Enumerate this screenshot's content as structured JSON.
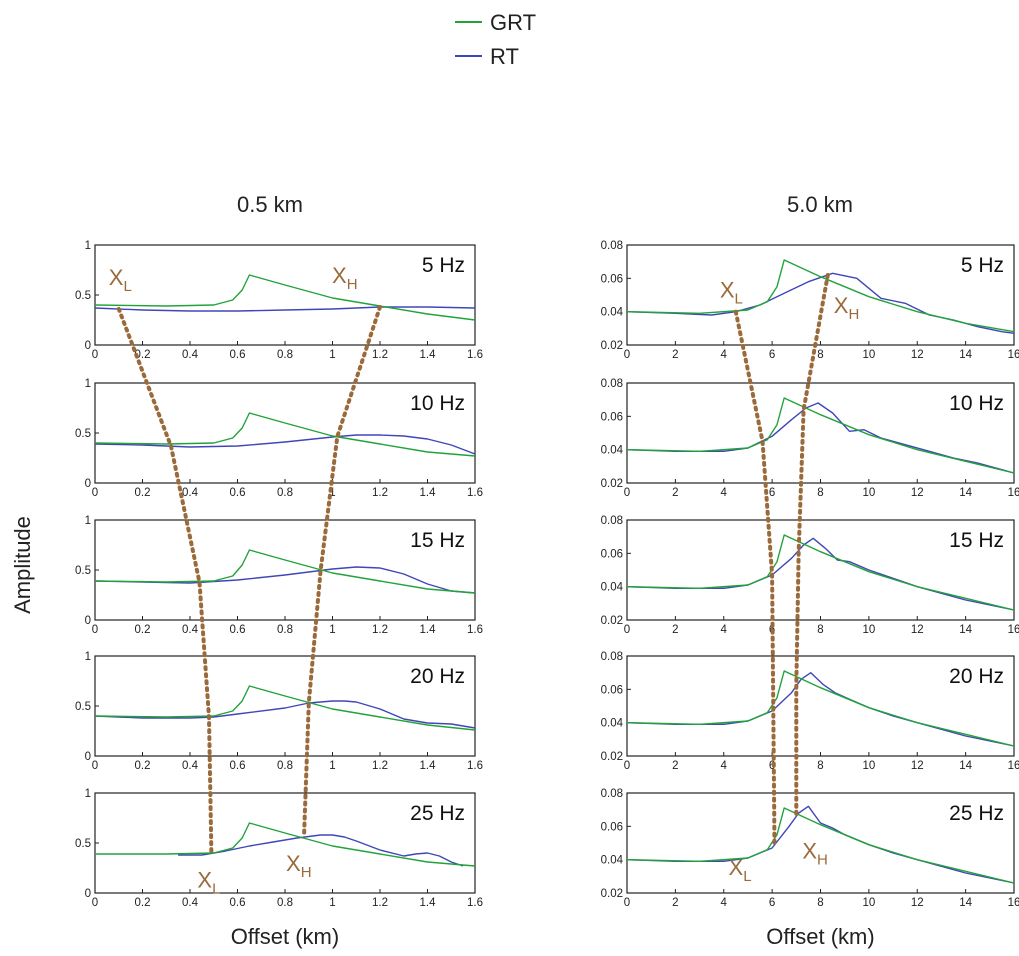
{
  "legend": {
    "placement": "top-center",
    "entries": [
      {
        "name": "GRT",
        "color": "#22a33a"
      },
      {
        "name": "RT",
        "color": "#4046b8"
      }
    ]
  },
  "ylabel": "Amplitude",
  "marker_color": "#9a6a3a",
  "marker_labels": {
    "low": "X",
    "low_sub": "L",
    "high": "X",
    "high_sub": "H"
  },
  "columns": [
    {
      "title": "0.5 km",
      "xlabel": "Offset (km)",
      "xlim": [
        0,
        1.6
      ],
      "xticks": [
        "0",
        "0.2",
        "0.4",
        "0.6",
        "0.8",
        "1",
        "1.2",
        "1.4",
        "1.6"
      ],
      "ylim": [
        0,
        1
      ],
      "yticks": [
        "0",
        "0.5",
        "1"
      ],
      "marker_label_panels": {
        "top": 0,
        "bottom": 4
      },
      "panels": [
        {
          "label": "5 Hz",
          "x_low": 0.1,
          "x_high": 1.2
        },
        {
          "label": "10 Hz",
          "x_low": 0.32,
          "x_high": 1.02
        },
        {
          "label": "15 Hz",
          "x_low": 0.44,
          "x_high": 0.95
        },
        {
          "label": "20 Hz",
          "x_low": 0.48,
          "x_high": 0.9
        },
        {
          "label": "25 Hz",
          "x_low": 0.49,
          "x_high": 0.88
        }
      ]
    },
    {
      "title": "5.0 km",
      "xlabel": "Offset (km)",
      "xlim": [
        0,
        16
      ],
      "xticks": [
        "0",
        "2",
        "4",
        "6",
        "8",
        "10",
        "12",
        "14",
        "16"
      ],
      "ylim": [
        0.02,
        0.08
      ],
      "yticks": [
        "0.02",
        "0.04",
        "0.06",
        "0.08"
      ],
      "marker_label_panels": {
        "top": 0,
        "bottom": 4
      },
      "panels": [
        {
          "label": "5 Hz",
          "x_low": 4.5,
          "x_high": 8.3
        },
        {
          "label": "10 Hz",
          "x_low": 5.6,
          "x_high": 7.3
        },
        {
          "label": "15 Hz",
          "x_low": 6.0,
          "x_high": 7.1
        },
        {
          "label": "20 Hz",
          "x_low": 6.05,
          "x_high": 7.0
        },
        {
          "label": "25 Hz",
          "x_low": 6.1,
          "x_high": 7.0
        }
      ]
    }
  ],
  "chart_data": [
    {
      "type": "line",
      "title": "0.5 km",
      "xlabel": "Offset (km)",
      "ylabel": "Amplitude",
      "xlim": [
        0,
        1.6
      ],
      "ylim": [
        0,
        1
      ],
      "panels": [
        {
          "label": "5 Hz",
          "series": [
            {
              "name": "GRT",
              "x": [
                0,
                0.3,
                0.5,
                0.58,
                0.62,
                0.65,
                0.8,
                1.0,
                1.2,
                1.4,
                1.6
              ],
              "y": [
                0.4,
                0.39,
                0.4,
                0.45,
                0.55,
                0.7,
                0.6,
                0.47,
                0.39,
                0.31,
                0.25
              ]
            },
            {
              "name": "RT",
              "x": [
                0,
                0.2,
                0.4,
                0.6,
                0.8,
                1.0,
                1.2,
                1.4,
                1.6
              ],
              "y": [
                0.37,
                0.35,
                0.34,
                0.34,
                0.35,
                0.36,
                0.38,
                0.38,
                0.37
              ]
            }
          ]
        },
        {
          "label": "10 Hz",
          "series": [
            {
              "name": "GRT",
              "x": [
                0,
                0.3,
                0.5,
                0.58,
                0.62,
                0.65,
                0.8,
                1.0,
                1.2,
                1.4,
                1.6
              ],
              "y": [
                0.4,
                0.39,
                0.4,
                0.45,
                0.55,
                0.7,
                0.6,
                0.47,
                0.39,
                0.31,
                0.27
              ]
            },
            {
              "name": "RT",
              "x": [
                0,
                0.2,
                0.4,
                0.6,
                0.8,
                1.0,
                1.1,
                1.2,
                1.3,
                1.4,
                1.5,
                1.6
              ],
              "y": [
                0.39,
                0.38,
                0.36,
                0.37,
                0.41,
                0.46,
                0.48,
                0.48,
                0.47,
                0.44,
                0.38,
                0.29
              ]
            }
          ]
        },
        {
          "label": "15 Hz",
          "series": [
            {
              "name": "GRT",
              "x": [
                0,
                0.3,
                0.5,
                0.58,
                0.62,
                0.65,
                0.8,
                1.0,
                1.2,
                1.4,
                1.6
              ],
              "y": [
                0.39,
                0.38,
                0.39,
                0.44,
                0.55,
                0.7,
                0.6,
                0.47,
                0.39,
                0.31,
                0.27
              ]
            },
            {
              "name": "RT",
              "x": [
                0,
                0.2,
                0.4,
                0.6,
                0.8,
                1.0,
                1.1,
                1.2,
                1.3,
                1.4,
                1.5,
                1.6
              ],
              "y": [
                0.39,
                0.38,
                0.37,
                0.4,
                0.45,
                0.51,
                0.53,
                0.52,
                0.46,
                0.36,
                0.29,
                0.27
              ]
            }
          ]
        },
        {
          "label": "20 Hz",
          "series": [
            {
              "name": "GRT",
              "x": [
                0,
                0.3,
                0.5,
                0.58,
                0.62,
                0.65,
                0.8,
                1.0,
                1.2,
                1.4,
                1.6
              ],
              "y": [
                0.4,
                0.39,
                0.4,
                0.45,
                0.55,
                0.7,
                0.6,
                0.47,
                0.39,
                0.31,
                0.26
              ]
            },
            {
              "name": "RT",
              "x": [
                0,
                0.2,
                0.4,
                0.5,
                0.6,
                0.8,
                0.9,
                1.0,
                1.05,
                1.1,
                1.2,
                1.3,
                1.4,
                1.5,
                1.6
              ],
              "y": [
                0.4,
                0.38,
                0.38,
                0.39,
                0.42,
                0.48,
                0.53,
                0.55,
                0.55,
                0.54,
                0.47,
                0.37,
                0.33,
                0.32,
                0.28
              ]
            }
          ]
        },
        {
          "label": "25 Hz",
          "series": [
            {
              "name": "GRT",
              "x": [
                0,
                0.3,
                0.5,
                0.58,
                0.62,
                0.65,
                0.8,
                1.0,
                1.2,
                1.4,
                1.6
              ],
              "y": [
                0.39,
                0.39,
                0.4,
                0.45,
                0.55,
                0.7,
                0.6,
                0.47,
                0.39,
                0.31,
                0.27
              ]
            },
            {
              "name": "RT",
              "x": [
                0.35,
                0.45,
                0.55,
                0.65,
                0.75,
                0.85,
                0.95,
                1.0,
                1.05,
                1.1,
                1.2,
                1.3,
                1.35,
                1.4,
                1.45,
                1.5,
                1.55
              ],
              "y": [
                0.38,
                0.38,
                0.42,
                0.47,
                0.51,
                0.55,
                0.58,
                0.58,
                0.56,
                0.52,
                0.43,
                0.37,
                0.39,
                0.4,
                0.37,
                0.31,
                0.27
              ]
            }
          ]
        }
      ]
    },
    {
      "type": "line",
      "title": "5.0 km",
      "xlabel": "Offset (km)",
      "ylabel": "Amplitude",
      "xlim": [
        0,
        16
      ],
      "ylim": [
        0.02,
        0.08
      ],
      "panels": [
        {
          "label": "5 Hz",
          "series": [
            {
              "name": "GRT",
              "x": [
                0,
                3,
                5,
                5.8,
                6.2,
                6.5,
                8,
                10,
                12,
                14,
                16
              ],
              "y": [
                0.04,
                0.039,
                0.041,
                0.046,
                0.055,
                0.071,
                0.061,
                0.049,
                0.04,
                0.033,
                0.028
              ]
            },
            {
              "name": "RT",
              "x": [
                0,
                2,
                3.5,
                4.5,
                5.5,
                6.5,
                7.5,
                8.5,
                9.5,
                10.5,
                11.5,
                12.5,
                13.5,
                14.5,
                15.5,
                16
              ],
              "y": [
                0.04,
                0.039,
                0.038,
                0.04,
                0.044,
                0.051,
                0.058,
                0.063,
                0.06,
                0.048,
                0.045,
                0.038,
                0.035,
                0.031,
                0.028,
                0.027
              ]
            }
          ]
        },
        {
          "label": "10 Hz",
          "series": [
            {
              "name": "GRT",
              "x": [
                0,
                3,
                5,
                5.8,
                6.2,
                6.5,
                8,
                10,
                12,
                14,
                16
              ],
              "y": [
                0.04,
                0.039,
                0.041,
                0.046,
                0.055,
                0.071,
                0.061,
                0.049,
                0.04,
                0.033,
                0.026
              ]
            },
            {
              "name": "RT",
              "x": [
                0,
                2,
                4,
                5,
                6,
                6.8,
                7.4,
                7.9,
                8.5,
                9.2,
                9.8,
                10.5,
                11.5,
                12.5,
                13.5,
                14.5,
                15.5,
                16
              ],
              "y": [
                0.04,
                0.039,
                0.039,
                0.041,
                0.048,
                0.058,
                0.065,
                0.068,
                0.062,
                0.051,
                0.052,
                0.047,
                0.043,
                0.039,
                0.035,
                0.032,
                0.028,
                0.026
              ]
            }
          ]
        },
        {
          "label": "15 Hz",
          "series": [
            {
              "name": "GRT",
              "x": [
                0,
                3,
                5,
                5.8,
                6.2,
                6.5,
                8,
                10,
                12,
                14,
                16
              ],
              "y": [
                0.04,
                0.039,
                0.041,
                0.046,
                0.055,
                0.071,
                0.061,
                0.049,
                0.04,
                0.033,
                0.026
              ]
            },
            {
              "name": "RT",
              "x": [
                0,
                2,
                4,
                5,
                6,
                6.8,
                7.3,
                7.7,
                8.2,
                8.7,
                9.2,
                10,
                11,
                12,
                13,
                14,
                15,
                16
              ],
              "y": [
                0.04,
                0.039,
                0.039,
                0.041,
                0.047,
                0.057,
                0.065,
                0.069,
                0.063,
                0.056,
                0.055,
                0.05,
                0.045,
                0.04,
                0.036,
                0.032,
                0.029,
                0.026
              ]
            }
          ]
        },
        {
          "label": "20 Hz",
          "series": [
            {
              "name": "GRT",
              "x": [
                0,
                3,
                5,
                5.8,
                6.2,
                6.5,
                8,
                10,
                12,
                14,
                16
              ],
              "y": [
                0.04,
                0.039,
                0.041,
                0.046,
                0.055,
                0.071,
                0.061,
                0.049,
                0.04,
                0.033,
                0.026
              ]
            },
            {
              "name": "RT",
              "x": [
                0,
                2,
                4,
                5,
                6,
                6.8,
                7.2,
                7.6,
                8.1,
                8.6,
                9.2,
                10,
                11,
                12,
                13,
                14,
                15,
                16
              ],
              "y": [
                0.04,
                0.039,
                0.039,
                0.041,
                0.047,
                0.058,
                0.066,
                0.07,
                0.063,
                0.058,
                0.054,
                0.049,
                0.044,
                0.04,
                0.036,
                0.032,
                0.029,
                0.026
              ]
            }
          ]
        },
        {
          "label": "25 Hz",
          "series": [
            {
              "name": "GRT",
              "x": [
                0,
                3,
                5,
                5.8,
                6.2,
                6.5,
                8,
                10,
                12,
                14,
                16
              ],
              "y": [
                0.04,
                0.039,
                0.041,
                0.046,
                0.055,
                0.071,
                0.061,
                0.049,
                0.04,
                0.033,
                0.026
              ]
            },
            {
              "name": "RT",
              "x": [
                0,
                2,
                4,
                5,
                6,
                6.7,
                7.1,
                7.5,
                8,
                8.5,
                9,
                10,
                11,
                12,
                13,
                14,
                15,
                16
              ],
              "y": [
                0.04,
                0.039,
                0.039,
                0.041,
                0.047,
                0.06,
                0.068,
                0.072,
                0.062,
                0.059,
                0.055,
                0.049,
                0.044,
                0.04,
                0.036,
                0.032,
                0.029,
                0.026
              ]
            }
          ]
        }
      ]
    }
  ]
}
